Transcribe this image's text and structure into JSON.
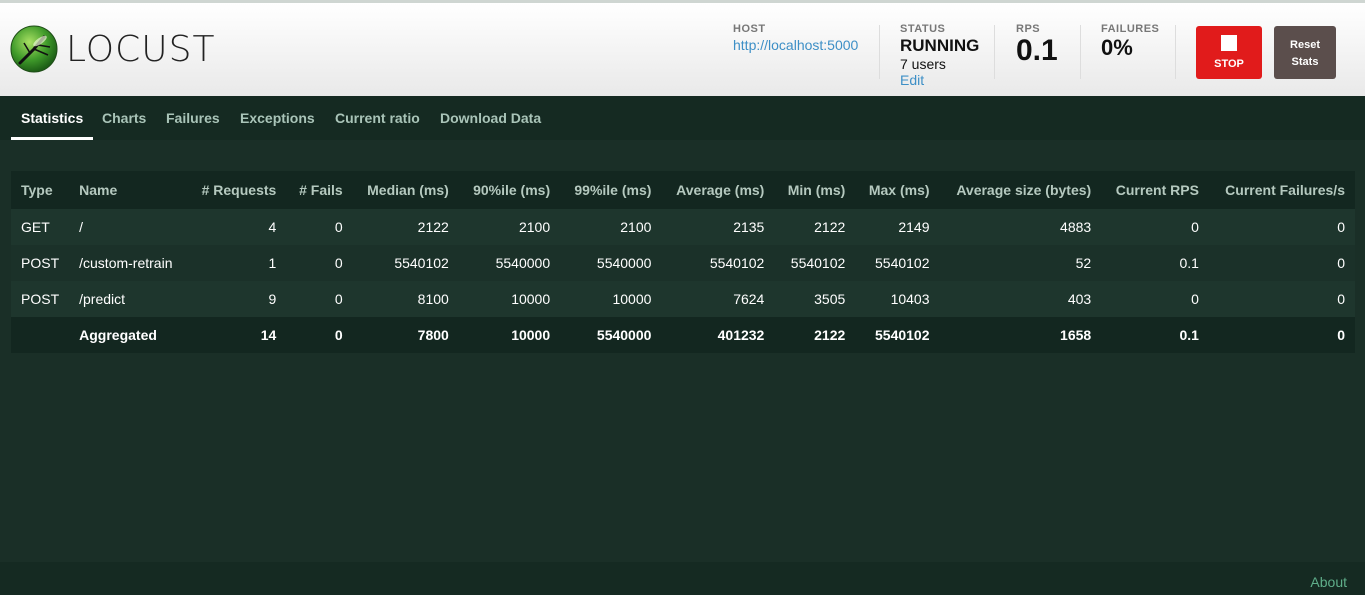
{
  "app": {
    "name": "LOCUST"
  },
  "header": {
    "host_label": "HOST",
    "host_value": "http://localhost:5000",
    "status_label": "STATUS",
    "status_value": "RUNNING",
    "users_value": "7 users",
    "edit_label": "Edit",
    "rps_label": "RPS",
    "rps_value": "0.1",
    "failures_label": "FAILURES",
    "failures_value": "0%",
    "stop_label": "STOP",
    "reset_label_line1": "Reset",
    "reset_label_line2": "Stats"
  },
  "tabs": [
    "Statistics",
    "Charts",
    "Failures",
    "Exceptions",
    "Current ratio",
    "Download Data"
  ],
  "table": {
    "columns": [
      "Type",
      "Name",
      "# Requests",
      "# Fails",
      "Median (ms)",
      "90%ile (ms)",
      "99%ile (ms)",
      "Average (ms)",
      "Min (ms)",
      "Max (ms)",
      "Average size (bytes)",
      "Current RPS",
      "Current Failures/s"
    ],
    "rows": [
      [
        "GET",
        "/",
        "4",
        "0",
        "2122",
        "2100",
        "2100",
        "2135",
        "2122",
        "2149",
        "4883",
        "0",
        "0"
      ],
      [
        "POST",
        "/custom-retrain",
        "1",
        "0",
        "5540102",
        "5540000",
        "5540000",
        "5540102",
        "5540102",
        "5540102",
        "52",
        "0.1",
        "0"
      ],
      [
        "POST",
        "/predict",
        "9",
        "0",
        "8100",
        "10000",
        "10000",
        "7624",
        "3505",
        "10403",
        "403",
        "0",
        "0"
      ]
    ],
    "total": [
      "",
      "Aggregated",
      "14",
      "0",
      "7800",
      "10000",
      "5540000",
      "401232",
      "2122",
      "5540102",
      "1658",
      "0.1",
      "0"
    ]
  },
  "footer": {
    "about_label": "About"
  },
  "colors": {
    "accent_red": "#e11b1b",
    "link_blue": "#3d8fc6",
    "background": "#1a2f27"
  }
}
